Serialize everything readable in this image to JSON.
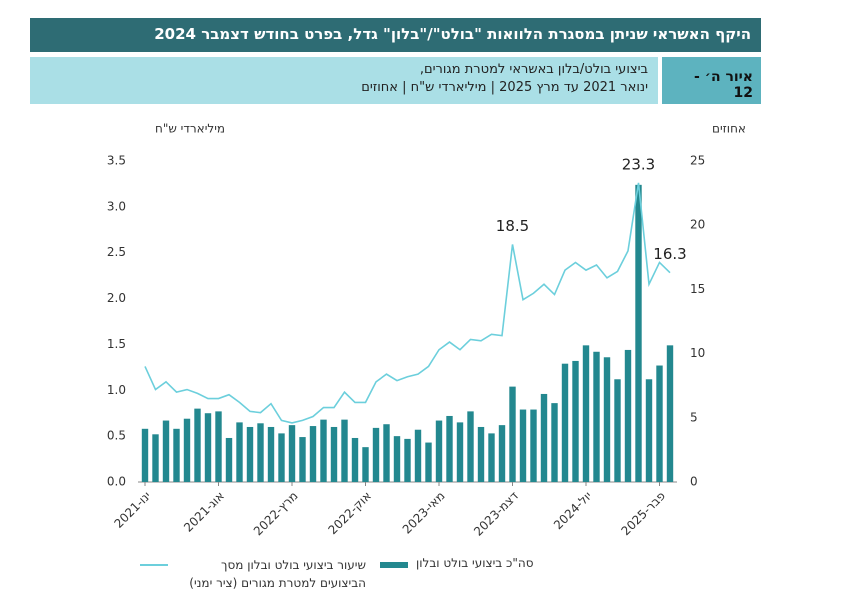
{
  "header": {
    "title": "היקף האשראי שניתן במסגרת הלוואות \"בולט\"/\"בלון\" גדל, בפרט בחודש דצמבר 2024",
    "figure_label": "איור ה׳ - 12",
    "subtitle_lines": [
      "ביצועי בולט/בלון באשראי למטרת מגורים,",
      "ינואר 2021 עד מרץ 2025 | מיליארדי ש\"ח | אחוזים"
    ]
  },
  "chart_data": {
    "type": "bar_line",
    "y_label": "מיליארדי ש\"ח",
    "y2_label": "אחוזים",
    "categories": [
      "ינו-2021",
      null,
      null,
      null,
      null,
      null,
      null,
      "אוג-2021",
      null,
      null,
      null,
      null,
      null,
      null,
      "מרץ-2022",
      null,
      null,
      null,
      null,
      null,
      null,
      "אוק-2022",
      null,
      null,
      null,
      null,
      null,
      null,
      "מאי-2023",
      null,
      null,
      null,
      null,
      null,
      null,
      "דצמ-2023",
      null,
      null,
      null,
      null,
      null,
      null,
      "יול-2024",
      null,
      null,
      null,
      null,
      null,
      null,
      "פבר-2025",
      null
    ],
    "ylim": [
      0,
      3.5
    ],
    "yticks": [
      {
        "value": 0,
        "label": "0.0"
      },
      0.5,
      {
        "value": 1,
        "label": "1.0"
      },
      1.5,
      {
        "value": 2,
        "label": "2.0"
      },
      2.5,
      {
        "value": 3,
        "label": "3.0"
      },
      3.5
    ],
    "y2lim": [
      0,
      25
    ],
    "y2ticks": [
      0,
      5,
      10,
      15,
      20,
      25
    ],
    "series": [
      {
        "name": "סה\"כ ביצועי בולט ובלון",
        "kind": "bar",
        "color": "#23888f",
        "values": [
          0.58,
          0.52,
          0.67,
          0.58,
          0.69,
          0.8,
          0.75,
          0.77,
          0.48,
          0.65,
          0.6,
          0.64,
          0.6,
          0.53,
          0.62,
          0.49,
          0.61,
          0.68,
          0.6,
          0.68,
          0.48,
          0.38,
          0.59,
          0.63,
          0.5,
          0.47,
          0.57,
          0.43,
          0.67,
          0.72,
          0.65,
          0.77,
          0.6,
          0.53,
          0.62,
          1.04,
          0.79,
          0.79,
          0.96,
          0.86,
          1.29,
          1.32,
          1.49,
          1.42,
          1.36,
          1.12,
          1.44,
          3.24,
          1.12,
          1.27,
          1.49
        ]
      },
      {
        "name": "שיעור ביצועי בולט ובלון מסך הביצועים למטרת מגורים (ציר ימני)",
        "kind": "line",
        "axis": "y2",
        "color": "#6ccfdc",
        "values": [
          9.0,
          7.2,
          7.8,
          7.0,
          7.2,
          6.9,
          6.5,
          6.5,
          6.8,
          6.2,
          5.5,
          5.4,
          6.1,
          4.8,
          4.6,
          4.8,
          5.1,
          5.8,
          5.8,
          7.0,
          6.2,
          6.2,
          7.8,
          8.4,
          7.9,
          8.2,
          8.4,
          9.0,
          10.3,
          10.9,
          10.3,
          11.1,
          11.0,
          11.5,
          11.4,
          18.5,
          14.2,
          14.7,
          15.4,
          14.6,
          16.5,
          17.1,
          16.5,
          16.9,
          15.9,
          16.4,
          18.0,
          23.3,
          15.4,
          17.1,
          16.3
        ],
        "label_indices": [
          35,
          47,
          50
        ]
      }
    ]
  }
}
